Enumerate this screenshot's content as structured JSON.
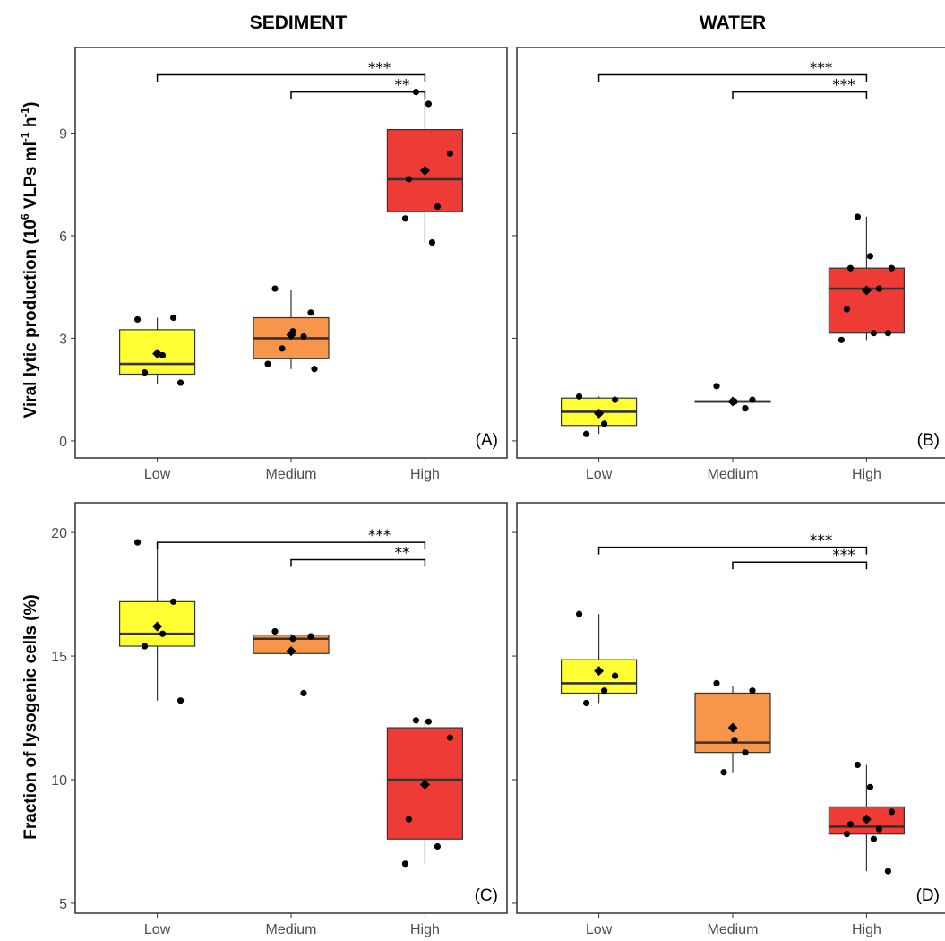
{
  "figure": {
    "column_titles": [
      "SEDIMENT",
      "WATER"
    ],
    "row_titles": [
      "Viral lytic production (10^6 VLPs ml^-1 h^-1)",
      "Fraction of lysogenic cells (%)"
    ],
    "row_title_1_main": "Viral lytic production (10",
    "row_title_1_exp1": "6",
    "row_title_1_mid": " VLPs ml",
    "row_title_1_exp2": "-1",
    "row_title_1_mid2": " h",
    "row_title_1_exp3": "-1",
    "row_title_1_end": ")",
    "row_title_2": "Fraction of lysogenic cells (%)"
  },
  "colors": {
    "Low": "#ffff33",
    "Medium": "#f7964a",
    "High": "#ef3b36"
  },
  "chart_data": [
    {
      "type": "box",
      "panel": "(A)",
      "column": "SEDIMENT",
      "categories": [
        "Low",
        "Medium",
        "High"
      ],
      "ylim": [
        -0.5,
        11.5
      ],
      "yticks": [
        0,
        3,
        6,
        9
      ],
      "boxes": [
        {
          "category": "Low",
          "q1": 1.95,
          "median": 2.25,
          "q3": 3.25,
          "whisker_low": 1.65,
          "whisker_high": 3.6,
          "mean": 2.55,
          "points": [
            3.55,
            3.6,
            2.5,
            2.0,
            1.7
          ]
        },
        {
          "category": "Medium",
          "q1": 2.4,
          "median": 3.0,
          "q3": 3.6,
          "whisker_low": 2.1,
          "whisker_high": 4.4,
          "mean": 3.1,
          "points": [
            4.45,
            3.75,
            3.2,
            3.05,
            2.7,
            2.25,
            2.1
          ]
        },
        {
          "category": "High",
          "q1": 6.7,
          "median": 7.65,
          "q3": 9.1,
          "whisker_low": 5.8,
          "whisker_high": 10.2,
          "mean": 7.9,
          "points": [
            10.2,
            9.85,
            8.4,
            7.65,
            6.85,
            6.5,
            5.8
          ]
        }
      ],
      "significance": [
        {
          "from": "Low",
          "to": "High",
          "label": "***",
          "y": 10.7
        },
        {
          "from": "Medium",
          "to": "High",
          "label": "**",
          "y": 10.2
        }
      ]
    },
    {
      "type": "box",
      "panel": "(B)",
      "column": "WATER",
      "categories": [
        "Low",
        "Medium",
        "High"
      ],
      "ylim": [
        -0.5,
        11.5
      ],
      "yticks": [
        0,
        3,
        6,
        9
      ],
      "boxes": [
        {
          "category": "Low",
          "q1": 0.45,
          "median": 0.85,
          "q3": 1.25,
          "whisker_low": 0.2,
          "whisker_high": 1.3,
          "mean": 0.8,
          "points": [
            1.3,
            1.2,
            0.5,
            0.2
          ]
        },
        {
          "category": "Medium",
          "q1": 1.13,
          "median": 1.15,
          "q3": 1.17,
          "whisker_low": 1.1,
          "whisker_high": 1.2,
          "mean": 1.15,
          "points": [
            1.6,
            1.2,
            1.15,
            0.95
          ]
        },
        {
          "category": "High",
          "q1": 3.15,
          "median": 4.45,
          "q3": 5.05,
          "whisker_low": 2.95,
          "whisker_high": 6.55,
          "mean": 4.4,
          "points": [
            6.55,
            5.4,
            5.05,
            5.05,
            4.45,
            3.85,
            3.15,
            3.15,
            2.95
          ]
        }
      ],
      "significance": [
        {
          "from": "Low",
          "to": "High",
          "label": "***",
          "y": 10.7
        },
        {
          "from": "Medium",
          "to": "High",
          "label": "***",
          "y": 10.2
        }
      ]
    },
    {
      "type": "box",
      "panel": "(C)",
      "column": "SEDIMENT",
      "categories": [
        "Low",
        "Medium",
        "High"
      ],
      "ylim": [
        4.6,
        21.2
      ],
      "yticks": [
        5,
        10,
        15,
        20
      ],
      "boxes": [
        {
          "category": "Low",
          "q1": 15.4,
          "median": 15.9,
          "q3": 17.2,
          "whisker_low": 13.2,
          "whisker_high": 19.6,
          "mean": 16.2,
          "points": [
            19.6,
            17.2,
            15.9,
            15.4,
            13.2
          ]
        },
        {
          "category": "Medium",
          "q1": 15.1,
          "median": 15.7,
          "q3": 15.85,
          "whisker_low": 15.0,
          "whisker_high": 15.9,
          "mean": 15.2,
          "points": [
            16.0,
            15.8,
            15.7,
            13.5
          ]
        },
        {
          "category": "High",
          "q1": 7.6,
          "median": 10.0,
          "q3": 12.1,
          "whisker_low": 6.6,
          "whisker_high": 12.4,
          "mean": 9.8,
          "points": [
            12.4,
            12.35,
            11.7,
            8.4,
            7.3,
            6.6
          ]
        }
      ],
      "significance": [
        {
          "from": "Low",
          "to": "High",
          "label": "***",
          "y": 19.6
        },
        {
          "from": "Medium",
          "to": "High",
          "label": "**",
          "y": 18.9
        }
      ]
    },
    {
      "type": "box",
      "panel": "(D)",
      "column": "WATER",
      "categories": [
        "Low",
        "Medium",
        "High"
      ],
      "ylim": [
        4.6,
        21.2
      ],
      "yticks": [
        5,
        10,
        15,
        20
      ],
      "boxes": [
        {
          "category": "Low",
          "q1": 13.5,
          "median": 13.9,
          "q3": 14.85,
          "whisker_low": 13.1,
          "whisker_high": 16.7,
          "mean": 14.4,
          "points": [
            16.7,
            14.2,
            13.6,
            13.1
          ]
        },
        {
          "category": "Medium",
          "q1": 11.1,
          "median": 11.5,
          "q3": 13.5,
          "whisker_low": 10.3,
          "whisker_high": 13.8,
          "mean": 12.1,
          "points": [
            13.9,
            13.6,
            11.6,
            11.1,
            10.3
          ]
        },
        {
          "category": "High",
          "q1": 7.8,
          "median": 8.1,
          "q3": 8.9,
          "whisker_low": 6.3,
          "whisker_high": 10.6,
          "mean": 8.4,
          "points": [
            10.6,
            9.7,
            8.7,
            8.2,
            8.0,
            7.8,
            7.6,
            6.3
          ]
        }
      ],
      "significance": [
        {
          "from": "Low",
          "to": "High",
          "label": "***",
          "y": 19.4
        },
        {
          "from": "Medium",
          "to": "High",
          "label": "***",
          "y": 18.8
        }
      ]
    }
  ]
}
